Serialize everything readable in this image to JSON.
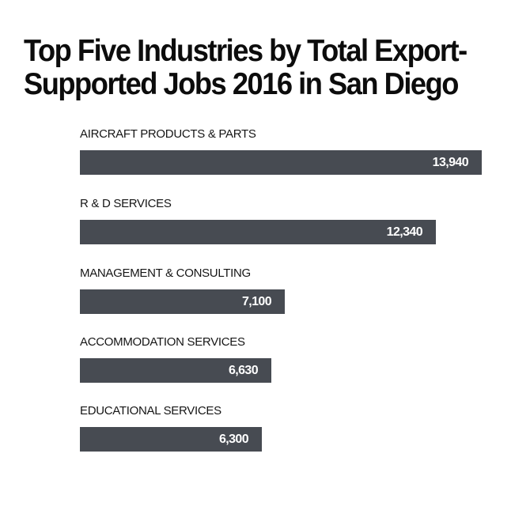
{
  "chart_data": {
    "type": "bar",
    "orientation": "horizontal",
    "title": "Top Five Industries by Total Export-Supported Jobs 2016 in San Diego",
    "categories": [
      "AIRCRAFT PRODUCTS & PARTS",
      "R & D SERVICES",
      "MANAGEMENT & CONSULTING",
      "ACCOMMODATION SERVICES",
      "EDUCATIONAL SERVICES"
    ],
    "values": [
      13940,
      12340,
      7100,
      6630,
      6300
    ],
    "value_labels": [
      "13,940",
      "12,340",
      "7,100",
      "6,630",
      "6,300"
    ],
    "xlim": [
      0,
      13940
    ],
    "grid": false,
    "bar_color": "#474b52"
  }
}
